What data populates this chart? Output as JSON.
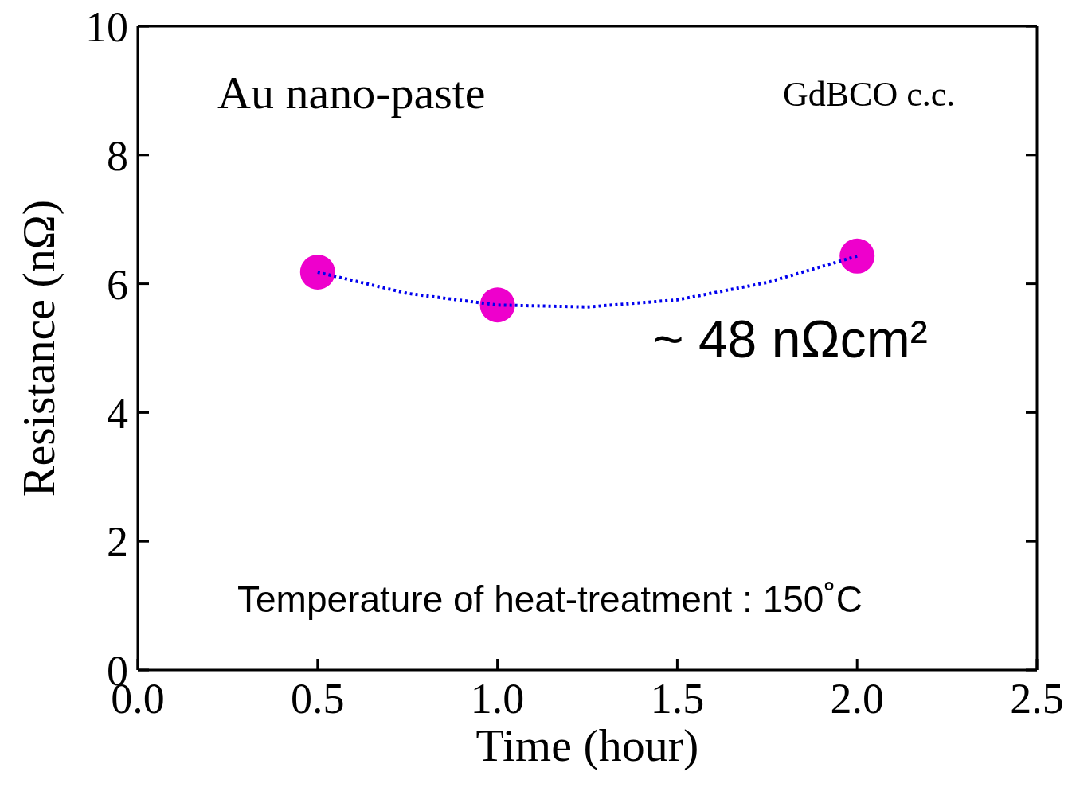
{
  "chart_data": {
    "type": "scatter",
    "xlabel": "Time (hour)",
    "ylabel": "Resistance (nΩ)",
    "annotations": [
      "Au nano-paste",
      "GdBCO c.c.",
      "~ 48 nΩcm²",
      "Temperature of heat-treatment : 150˚C"
    ],
    "series": [
      {
        "type": "scatter",
        "color": "#ee00cc",
        "marker": "circle",
        "x": [
          0.5,
          1.0,
          2.0
        ],
        "values": [
          6.18,
          5.67,
          6.43
        ]
      },
      {
        "type": "line",
        "color": "#0000ee",
        "marker": "none",
        "line_style": "dotted",
        "x": [
          0.5,
          0.75,
          1.0,
          1.25,
          1.5,
          1.75,
          2.0
        ],
        "values": [
          6.18,
          5.85,
          5.67,
          5.64,
          5.75,
          6.02,
          6.43
        ]
      }
    ],
    "xlim": [
      0,
      2.5
    ],
    "xticks": [
      {
        "value": 0,
        "label": "0.0"
      },
      0.5,
      {
        "value": 1,
        "label": "1.0"
      },
      1.5,
      {
        "value": 2,
        "label": "2.0"
      },
      2.5
    ],
    "ylim": [
      0,
      10
    ],
    "yticks": [
      0,
      2,
      4,
      6,
      8,
      10
    ],
    "grid": false,
    "legend": false
  }
}
